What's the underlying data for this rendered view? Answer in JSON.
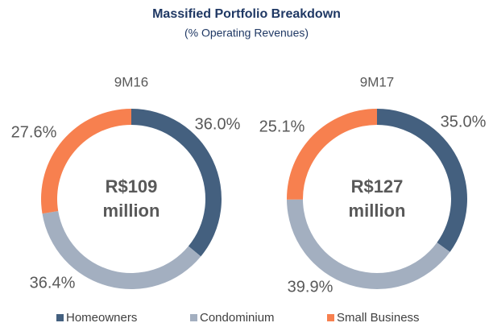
{
  "title": "Massified Portfolio Breakdown",
  "subtitle": "(% Operating Revenues)",
  "chart_data": [
    {
      "type": "pie",
      "title": "9M16",
      "center_text": [
        "R$109",
        "million"
      ],
      "categories": [
        "Homeowners",
        "Condominium",
        "Small Business"
      ],
      "values": [
        36.0,
        36.4,
        27.6
      ],
      "value_labels": [
        "36.0%",
        "36.4%",
        "27.6%"
      ],
      "colors": [
        "#44607f",
        "#a3afc0",
        "#f7804f"
      ]
    },
    {
      "type": "pie",
      "title": "9M17",
      "center_text": [
        "R$127",
        "million"
      ],
      "categories": [
        "Homeowners",
        "Condominium",
        "Small Business"
      ],
      "values": [
        35.0,
        39.9,
        25.1
      ],
      "value_labels": [
        "35.0%",
        "39.9%",
        "25.1%"
      ],
      "colors": [
        "#44607f",
        "#a3afc0",
        "#f7804f"
      ]
    }
  ]
}
